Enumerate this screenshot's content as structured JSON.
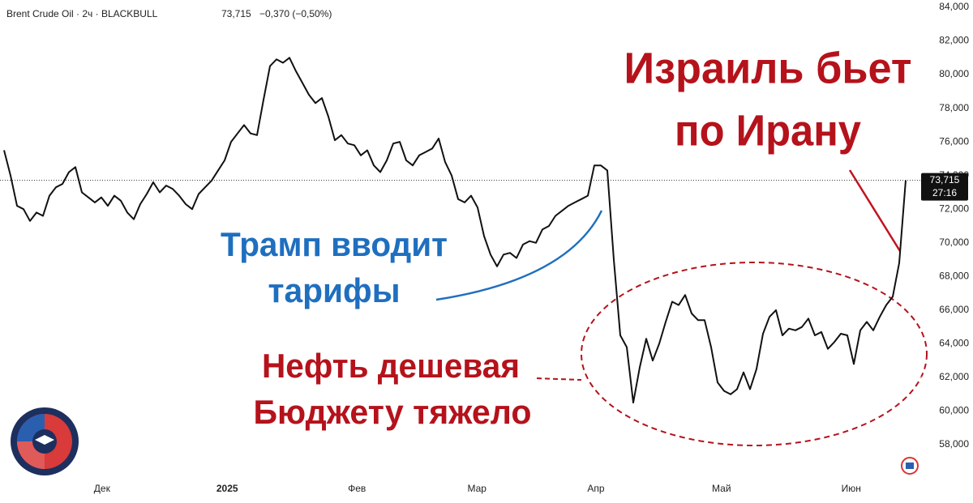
{
  "chart_data": {
    "type": "line",
    "header": {
      "symbol": "Brent Crude Oil · 2ч · BLACKBULL",
      "price": "73,715",
      "change": "−0,370 (−0,50%)"
    },
    "values": [
      75.5,
      74.0,
      72.2,
      72.0,
      71.3,
      71.8,
      71.6,
      72.8,
      73.3,
      73.5,
      74.2,
      74.5,
      73.0,
      72.7,
      72.4,
      72.7,
      72.2,
      72.8,
      72.5,
      71.8,
      71.4,
      72.3,
      72.9,
      73.6,
      73.0,
      73.4,
      73.2,
      72.8,
      72.3,
      72.0,
      72.9,
      73.3,
      73.7,
      74.3,
      74.9,
      76.0,
      76.5,
      77.0,
      76.5,
      76.4,
      78.5,
      80.5,
      80.9,
      80.7,
      81.0,
      80.2,
      79.5,
      78.8,
      78.3,
      78.6,
      77.5,
      76.1,
      76.4,
      75.9,
      75.8,
      75.2,
      75.5,
      74.6,
      74.2,
      74.9,
      75.9,
      76.0,
      74.9,
      74.6,
      75.2,
      75.4,
      75.6,
      76.2,
      74.8,
      74.0,
      72.6,
      72.4,
      72.8,
      72.1,
      70.4,
      69.3,
      68.6,
      69.3,
      69.4,
      69.1,
      69.9,
      70.1,
      70.0,
      70.8,
      71.0,
      71.6,
      71.9,
      72.2,
      72.4,
      72.6,
      72.8,
      74.6,
      74.6,
      74.3,
      69.0,
      64.5,
      63.8,
      60.5,
      62.6,
      64.3,
      63.0,
      64.0,
      65.3,
      66.5,
      66.3,
      66.9,
      65.8,
      65.4,
      65.4,
      63.8,
      61.7,
      61.2,
      61.0,
      61.3,
      62.3,
      61.3,
      62.5,
      64.6,
      65.6,
      66.0,
      64.5,
      64.9,
      64.8,
      65.0,
      65.5,
      64.5,
      64.7,
      63.7,
      64.1,
      64.6,
      64.5,
      62.8,
      64.8,
      65.3,
      64.8,
      65.6,
      66.3,
      66.8,
      68.8,
      73.715
    ],
    "color": "#111111",
    "xlim": [
      -0.625,
      141.25
    ],
    "xticks": [
      {
        "value": 15.1,
        "label": "Дек"
      },
      {
        "value": 34.4,
        "label": "2025"
      },
      {
        "value": 54.4,
        "label": "Фев"
      },
      {
        "value": 72.9,
        "label": "Мар"
      },
      {
        "value": 91.25,
        "label": "Апр"
      },
      {
        "value": 110.6,
        "label": "Май"
      },
      {
        "value": 130.6,
        "label": "Июн"
      }
    ],
    "ylim": [
      56.03,
      84.43
    ],
    "yticks": [
      {
        "value": 58,
        "label": "58,000"
      },
      {
        "value": 60,
        "label": "60,000"
      },
      {
        "value": 62,
        "label": "62,000"
      },
      {
        "value": 64,
        "label": "64,000"
      },
      {
        "value": 66,
        "label": "66,000"
      },
      {
        "value": 68,
        "label": "68,000"
      },
      {
        "value": 70,
        "label": "70,000"
      },
      {
        "value": 72,
        "label": "72,000"
      },
      {
        "value": 74,
        "label": "74,000"
      },
      {
        "value": 76,
        "label": "76,000"
      },
      {
        "value": 78,
        "label": "78,000"
      },
      {
        "value": 80,
        "label": "80,000"
      },
      {
        "value": 82,
        "label": "82,000"
      },
      {
        "value": 84,
        "label": "84,000"
      }
    ],
    "grid": false,
    "last_price": {
      "value": 73.715,
      "label": "73,715",
      "countdown": "27:16"
    },
    "annotations": {
      "israel": [
        "Израиль бьет",
        "по Ирану"
      ],
      "trump": [
        "Трамп вводит",
        "тарифы"
      ],
      "oil": [
        "Нефть дешевая",
        "Бюджету тяжело"
      ]
    }
  }
}
